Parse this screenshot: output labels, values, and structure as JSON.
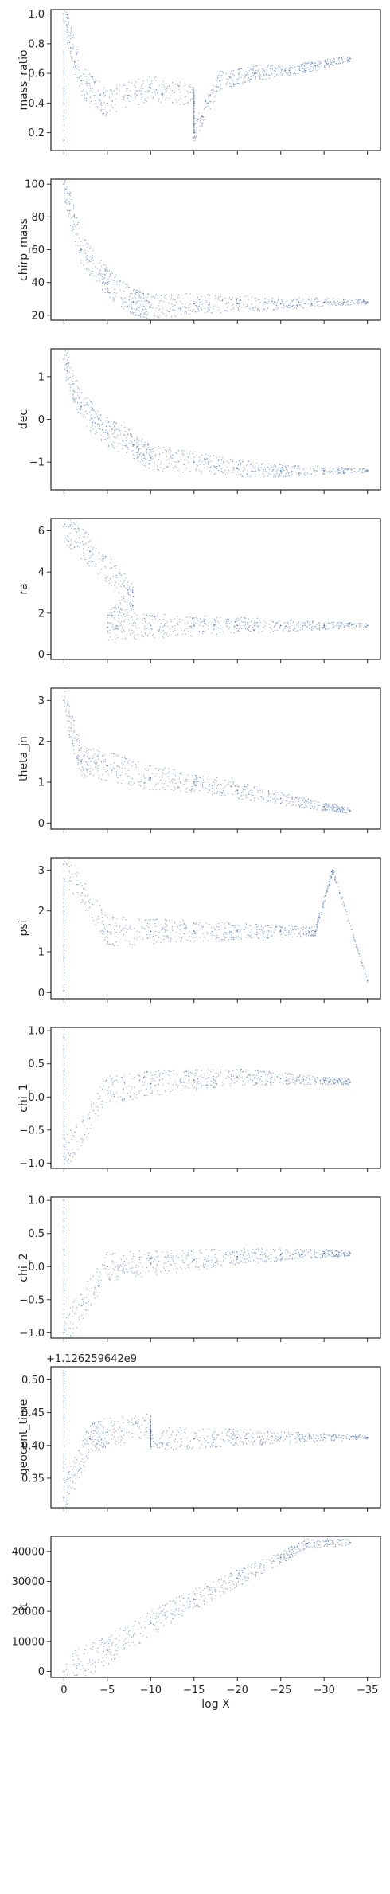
{
  "chart_data": {
    "type": "scatter",
    "layout": "vertical-stack",
    "shared_x": {
      "label": "log X",
      "range": [
        1.5,
        -36.5
      ],
      "ticks": [
        0,
        -5,
        -10,
        -15,
        -20,
        -25,
        -30,
        -35
      ],
      "tick_labels": [
        "0",
        "−5",
        "−10",
        "−15",
        "−20",
        "−25",
        "−30",
        "−35"
      ]
    },
    "point_color": "#4c72b0",
    "panels": [
      {
        "ylabel": "mass_ratio",
        "ylim": [
          0.08,
          1.03
        ],
        "yticks": [
          0.2,
          0.4,
          0.6,
          0.8,
          1.0
        ],
        "ytick_labels": [
          "0.2",
          "0.4",
          "0.6",
          "0.8",
          "1.0"
        ],
        "series": [
          {
            "points": [
              [
                0,
                0.15
              ],
              [
                0,
                1.0
              ],
              [
                -2,
                0.55
              ],
              [
                -5,
                0.4
              ],
              [
                -10,
                0.5
              ],
              [
                -15,
                0.45
              ],
              [
                -15,
                0.2
              ],
              [
                -18,
                0.55
              ],
              [
                -22,
                0.6
              ],
              [
                -26,
                0.62
              ],
              [
                -29,
                0.65
              ],
              [
                -33,
                0.7
              ]
            ]
          }
        ]
      },
      {
        "ylabel": "chirp_mass",
        "ylim": [
          17,
          103
        ],
        "yticks": [
          20,
          40,
          60,
          80,
          100
        ],
        "ytick_labels": [
          "20",
          "40",
          "60",
          "80",
          "100"
        ],
        "series": [
          {
            "points": [
              [
                0,
                100
              ],
              [
                -2,
                60
              ],
              [
                -5,
                40
              ],
              [
                -8,
                28
              ],
              [
                -10,
                25
              ],
              [
                -15,
                27
              ],
              [
                -20,
                27
              ],
              [
                -25,
                27
              ],
              [
                -30,
                28
              ],
              [
                -35,
                28
              ]
            ]
          }
        ]
      },
      {
        "ylabel": "dec",
        "ylim": [
          -1.65,
          1.65
        ],
        "yticks": [
          -1,
          0,
          1
        ],
        "ytick_labels": [
          "−1",
          "0",
          "1"
        ],
        "series": [
          {
            "points": [
              [
                0,
                1.4
              ],
              [
                -2,
                0.3
              ],
              [
                -5,
                -0.3
              ],
              [
                -8,
                -0.6
              ],
              [
                -10,
                -0.9
              ],
              [
                -15,
                -1.0
              ],
              [
                -20,
                -1.15
              ],
              [
                -25,
                -1.2
              ],
              [
                -30,
                -1.2
              ],
              [
                -35,
                -1.2
              ]
            ]
          }
        ]
      },
      {
        "ylabel": "ra",
        "ylim": [
          -0.25,
          6.6
        ],
        "yticks": [
          0,
          2,
          4,
          6
        ],
        "ytick_labels": [
          "0",
          "2",
          "4",
          "6"
        ],
        "series": [
          {
            "points": [
              [
                0,
                6.2
              ],
              [
                -3,
                5.0
              ],
              [
                -8,
                2.8
              ],
              [
                -5,
                1.3
              ],
              [
                -10,
                1.4
              ],
              [
                -15,
                1.4
              ],
              [
                -20,
                1.4
              ],
              [
                -25,
                1.4
              ],
              [
                -30,
                1.4
              ],
              [
                -35,
                1.4
              ]
            ]
          }
        ]
      },
      {
        "ylabel": "theta_jn",
        "ylim": [
          -0.15,
          3.3
        ],
        "yticks": [
          0,
          1,
          2,
          3
        ],
        "ytick_labels": [
          "0",
          "1",
          "2",
          "3"
        ],
        "series": [
          {
            "points": [
              [
                0,
                3.0
              ],
              [
                -2,
                1.5
              ],
              [
                -5,
                1.4
              ],
              [
                -10,
                1.1
              ],
              [
                -15,
                1.0
              ],
              [
                -20,
                0.8
              ],
              [
                -25,
                0.6
              ],
              [
                -30,
                0.4
              ],
              [
                -33,
                0.3
              ]
            ]
          }
        ]
      },
      {
        "ylabel": "psi",
        "ylim": [
          -0.15,
          3.3
        ],
        "yticks": [
          0,
          1,
          2,
          3
        ],
        "ytick_labels": [
          "0",
          "1",
          "2",
          "3"
        ],
        "series": [
          {
            "points": [
              [
                0,
                0.05
              ],
              [
                0,
                3.14
              ],
              [
                -5,
                1.5
              ],
              [
                -10,
                1.5
              ],
              [
                -15,
                1.5
              ],
              [
                -20,
                1.5
              ],
              [
                -25,
                1.5
              ],
              [
                -29,
                1.5
              ],
              [
                -31,
                3.0
              ],
              [
                -35,
                0.3
              ]
            ]
          }
        ]
      },
      {
        "ylabel": "chi_1",
        "ylim": [
          -1.08,
          1.05
        ],
        "yticks": [
          -1.0,
          -0.5,
          0.0,
          0.5,
          1.0
        ],
        "ytick_labels": [
          "−1.0",
          "−0.5",
          "0.0",
          "0.5",
          "1.0"
        ],
        "series": [
          {
            "points": [
              [
                0,
                0.9
              ],
              [
                0,
                -0.9
              ],
              [
                -5,
                0.1
              ],
              [
                -10,
                0.2
              ],
              [
                -15,
                0.25
              ],
              [
                -20,
                0.3
              ],
              [
                -25,
                0.28
              ],
              [
                -30,
                0.25
              ],
              [
                -33,
                0.22
              ]
            ]
          }
        ]
      },
      {
        "ylabel": "chi_2",
        "ylim": [
          -1.08,
          1.05
        ],
        "yticks": [
          -1.0,
          -0.5,
          0.0,
          0.5,
          1.0
        ],
        "ytick_labels": [
          "−1.0",
          "−0.5",
          "0.0",
          "0.5",
          "1.0"
        ],
        "series": [
          {
            "points": [
              [
                0,
                1.0
              ],
              [
                0,
                -1.0
              ],
              [
                -5,
                0.0
              ],
              [
                -10,
                0.05
              ],
              [
                -15,
                0.1
              ],
              [
                -20,
                0.15
              ],
              [
                -25,
                0.18
              ],
              [
                -30,
                0.2
              ],
              [
                -33,
                0.2
              ]
            ]
          }
        ]
      },
      {
        "ylabel": "geocent_time",
        "offset_text": "+1.126259642e9",
        "ylim": [
          0.305,
          0.52
        ],
        "yticks": [
          0.35,
          0.4,
          0.45,
          0.5
        ],
        "ytick_labels": [
          "0.35",
          "0.40",
          "0.45",
          "0.50"
        ],
        "series": [
          {
            "points": [
              [
                0,
                0.51
              ],
              [
                0,
                0.32
              ],
              [
                -3,
                0.41
              ],
              [
                -5,
                0.42
              ],
              [
                -10,
                0.43
              ],
              [
                -10,
                0.41
              ],
              [
                -15,
                0.41
              ],
              [
                -20,
                0.412
              ],
              [
                -25,
                0.412
              ],
              [
                -30,
                0.412
              ],
              [
                -35,
                0.412
              ]
            ]
          }
        ]
      },
      {
        "ylabel": "it",
        "ylim": [
          -2000,
          45000
        ],
        "yticks": [
          0,
          10000,
          20000,
          30000,
          40000
        ],
        "ytick_labels": [
          "0",
          "10000",
          "20000",
          "30000",
          "40000"
        ],
        "series": [
          {
            "points": [
              [
                0,
                0
              ],
              [
                -5,
                7000
              ],
              [
                -10,
                16000
              ],
              [
                -15,
                24000
              ],
              [
                -20,
                31000
              ],
              [
                -25,
                38000
              ],
              [
                -28,
                42500
              ],
              [
                -33,
                43000
              ]
            ]
          }
        ]
      }
    ]
  }
}
